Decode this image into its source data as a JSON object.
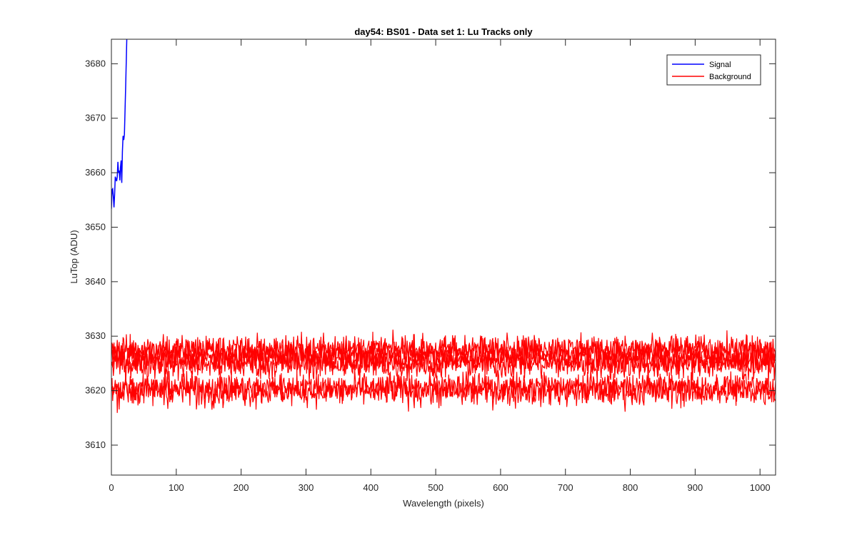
{
  "chart_data": {
    "type": "line",
    "title": "day54: BS01 - Data set 1: Lu Tracks only",
    "xlabel": "Wavelength (pixels)",
    "ylabel": "LuTop (ADU)",
    "xlim": [
      0,
      1024
    ],
    "ylim": [
      3604.5,
      3684.5
    ],
    "xticks": [
      0,
      100,
      200,
      300,
      400,
      500,
      600,
      700,
      800,
      900,
      1000
    ],
    "yticks": [
      3610,
      3620,
      3630,
      3640,
      3650,
      3660,
      3670,
      3680
    ],
    "grid": false,
    "legend_position": "top-right",
    "series": [
      {
        "name": "Signal",
        "color": "#0000ff",
        "x": [
          0,
          2,
          4,
          6,
          8,
          10,
          12,
          14,
          16,
          18,
          20,
          22,
          24
        ],
        "y": [
          3654,
          3659,
          3655,
          3660,
          3657,
          3661,
          3659,
          3662,
          3660,
          3665,
          3667,
          3676,
          3686
        ]
      },
      {
        "name": "Background",
        "color": "#ff0000",
        "noise_traces_mean": [
          3627,
          3625,
          3620
        ],
        "noise_traces_range": [
          3615,
          3634
        ],
        "x": [
          0,
          100,
          200,
          300,
          400,
          500,
          600,
          700,
          800,
          900,
          1000,
          1024
        ],
        "y_upper": [
          3628,
          3628,
          3628,
          3628,
          3628,
          3628,
          3629,
          3628,
          3628,
          3628,
          3627,
          3627
        ],
        "y_middle": [
          3625,
          3625,
          3625,
          3625,
          3625,
          3625,
          3625,
          3625,
          3625,
          3625,
          3625,
          3625
        ],
        "y_lower": [
          3620,
          3620,
          3620,
          3620,
          3620,
          3620,
          3620,
          3620,
          3620,
          3620,
          3620,
          3620
        ]
      }
    ]
  }
}
